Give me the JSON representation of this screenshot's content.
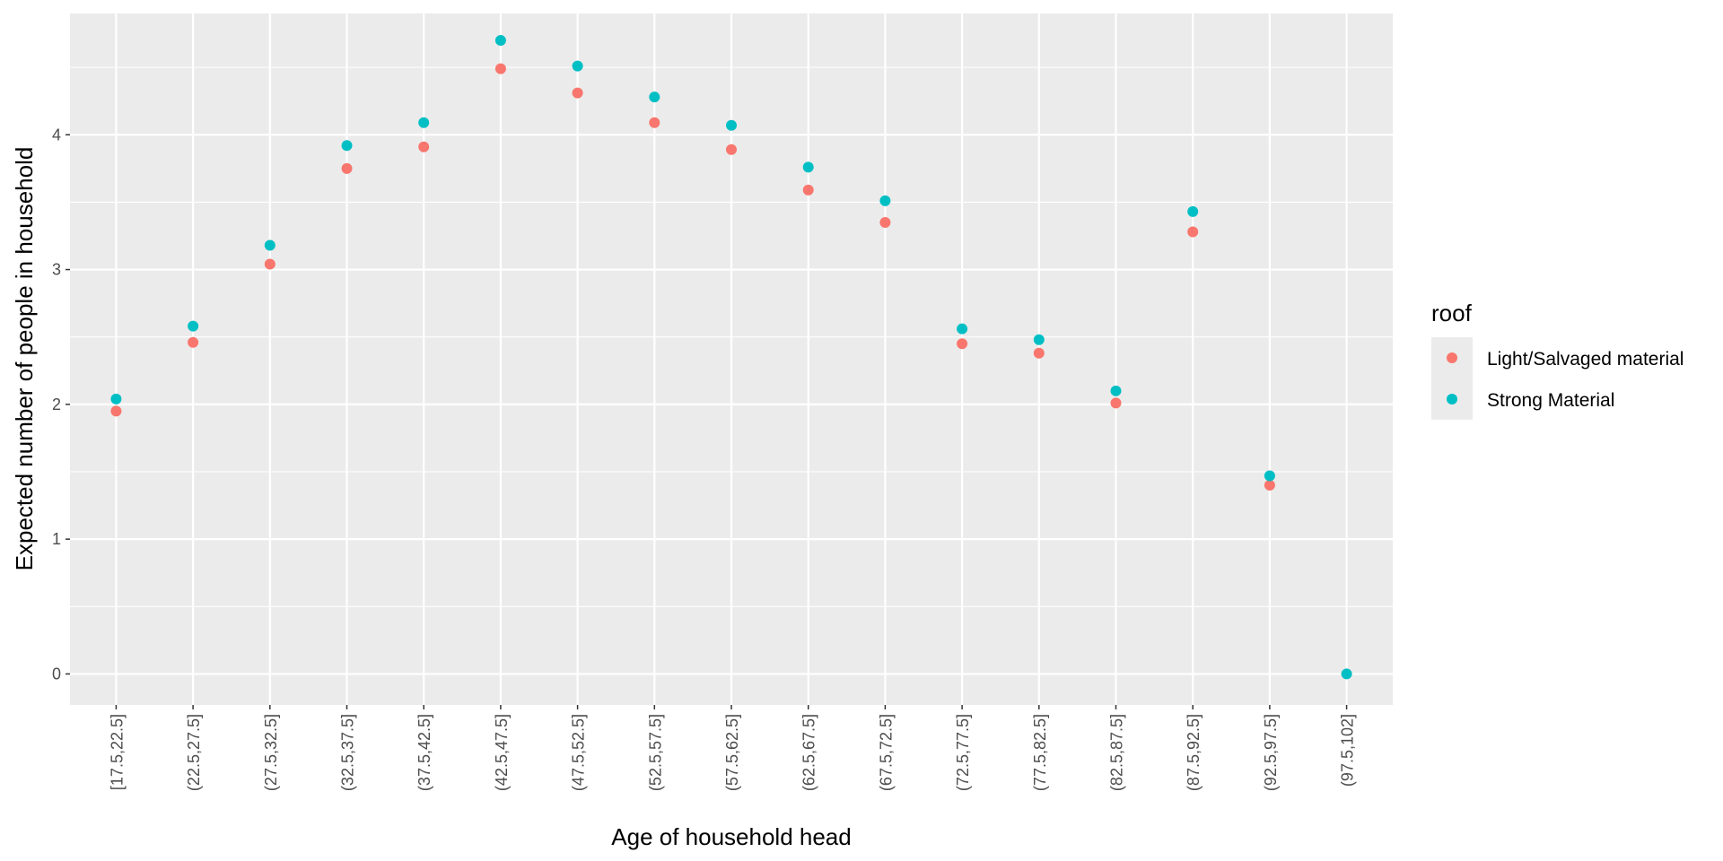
{
  "chart_data": {
    "type": "scatter",
    "xlabel": "Age of household head",
    "ylabel": "Expected number of people in household",
    "categories": [
      "[17.5,22.5]",
      "(22.5,27.5]",
      "(27.5,32.5]",
      "(32.5,37.5]",
      "(37.5,42.5]",
      "(42.5,47.5]",
      "(47.5,52.5]",
      "(52.5,57.5]",
      "(57.5,62.5]",
      "(62.5,67.5]",
      "(67.5,72.5]",
      "(72.5,77.5]",
      "(77.5,82.5]",
      "(82.5,87.5]",
      "(87.5,92.5]",
      "(92.5,97.5]",
      "(97.5,102]"
    ],
    "y_ticks": [
      0,
      1,
      2,
      3,
      4
    ],
    "ylim": [
      -0.23,
      4.9
    ],
    "grid": true,
    "legend": {
      "title": "roof",
      "position": "right"
    },
    "series": [
      {
        "name": "Light/Salvaged material",
        "color": "#F8766D",
        "values": [
          1.95,
          2.46,
          3.04,
          3.75,
          3.91,
          4.49,
          4.31,
          4.09,
          3.89,
          3.59,
          3.35,
          2.45,
          2.38,
          2.01,
          3.28,
          1.4,
          null
        ]
      },
      {
        "name": "Strong Material",
        "color": "#00BFC4",
        "values": [
          2.04,
          2.58,
          3.18,
          3.92,
          4.09,
          4.7,
          4.51,
          4.28,
          4.07,
          3.76,
          3.51,
          2.56,
          2.48,
          2.1,
          3.43,
          1.47,
          0.0
        ]
      }
    ]
  }
}
